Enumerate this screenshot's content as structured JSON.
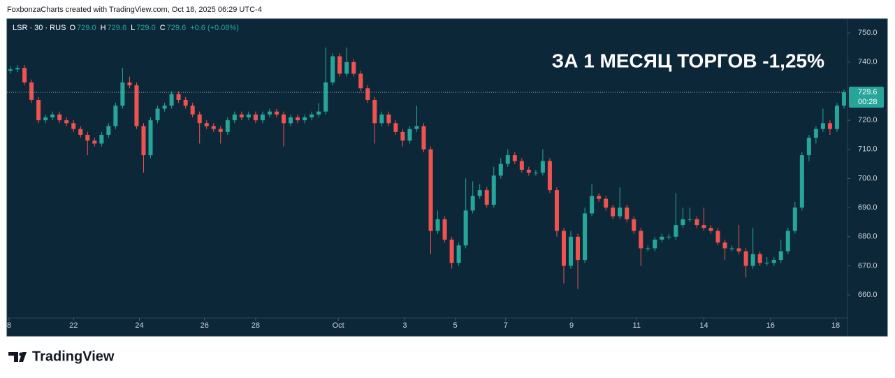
{
  "header": "FoxbonzaCharts created with TradingView.com, Oct 18, 2025 06:29 UTC-4",
  "chart_data": {
    "type": "candlestick",
    "symbol": "LSR · 30 · RUS",
    "ohlc": [
      {
        "key": "O",
        "value": "729.0"
      },
      {
        "key": "H",
        "value": "729.6"
      },
      {
        "key": "L",
        "value": "729.0"
      },
      {
        "key": "C",
        "value": "729.6"
      }
    ],
    "change": "+0.6 (+0.08%)",
    "annotation": "ЗА 1 МЕСЯЦ ТОРГОВ -1,25%",
    "up_color": "#26a69a",
    "down_color": "#ef5350",
    "last_price": 729.6,
    "countdown": "00:28",
    "xlim": [
      0,
      120
    ],
    "xticks": [
      {
        "value": 0.3,
        "label": "8"
      },
      {
        "value": 9.5,
        "label": "22"
      },
      {
        "value": 18.9,
        "label": "24"
      },
      {
        "value": 28.2,
        "label": "26"
      },
      {
        "value": 35.5,
        "label": "28"
      },
      {
        "value": 47.3,
        "label": "Oct"
      },
      {
        "value": 56.8,
        "label": "3"
      },
      {
        "value": 64,
        "label": "5"
      },
      {
        "value": 71.2,
        "label": "7"
      },
      {
        "value": 80.6,
        "label": "9"
      },
      {
        "value": 89.9,
        "label": "11"
      },
      {
        "value": 99.5,
        "label": "14"
      },
      {
        "value": 109,
        "label": "16"
      },
      {
        "value": 118.3,
        "label": "18"
      }
    ],
    "ylim": [
      652.1,
      754.6
    ],
    "yticks": [
      {
        "value": 660,
        "label": "660.0"
      },
      {
        "value": 670,
        "label": "670.0"
      },
      {
        "value": 680,
        "label": "680.0"
      },
      {
        "value": 690,
        "label": "690.0"
      },
      {
        "value": 700,
        "label": "700.0"
      },
      {
        "value": 710,
        "label": "710.0"
      },
      {
        "value": 720,
        "label": "720.0"
      },
      {
        "value": 730,
        "label": "730.0"
      },
      {
        "value": 740,
        "label": "740.0"
      },
      {
        "value": 750,
        "label": "750.0"
      }
    ],
    "candles": [
      [
        737,
        738.5,
        736,
        737.5
      ],
      [
        737.5,
        739,
        736.5,
        738
      ],
      [
        738,
        739,
        732,
        733
      ],
      [
        733,
        734,
        726,
        727
      ],
      [
        727,
        728,
        719,
        720
      ],
      [
        720,
        722,
        719,
        721
      ],
      [
        721,
        723,
        720,
        722
      ],
      [
        722,
        723,
        719,
        720
      ],
      [
        720,
        721,
        718,
        719
      ],
      [
        719,
        720,
        716,
        717
      ],
      [
        717,
        718,
        714,
        715
      ],
      [
        715,
        716,
        708,
        713
      ],
      [
        713,
        714,
        711,
        712
      ],
      [
        712,
        716,
        711,
        715
      ],
      [
        715,
        719,
        714,
        718
      ],
      [
        718,
        726,
        717,
        725
      ],
      [
        725,
        738,
        724,
        733
      ],
      [
        733,
        735,
        731,
        732
      ],
      [
        732,
        733,
        717,
        718
      ],
      [
        718,
        719,
        702,
        708
      ],
      [
        708,
        721,
        707,
        720
      ],
      [
        720,
        725,
        719,
        724
      ],
      [
        724,
        726,
        723,
        725
      ],
      [
        725,
        730,
        724,
        729
      ],
      [
        729,
        730,
        726,
        727
      ],
      [
        727,
        728,
        724,
        725
      ],
      [
        725,
        726,
        721,
        722
      ],
      [
        722,
        723,
        712,
        719
      ],
      [
        719,
        720,
        717,
        718
      ],
      [
        718,
        719,
        716,
        717
      ],
      [
        717,
        718,
        712,
        716
      ],
      [
        716,
        721,
        715,
        720
      ],
      [
        720,
        723,
        719,
        722
      ],
      [
        722,
        723,
        720,
        721
      ],
      [
        721,
        723,
        720,
        722
      ],
      [
        722,
        723,
        719,
        720
      ],
      [
        720,
        723,
        719,
        722
      ],
      [
        722,
        724,
        721,
        723
      ],
      [
        723,
        724,
        721,
        722
      ],
      [
        722,
        723,
        711,
        719
      ],
      [
        719,
        722,
        718,
        721
      ],
      [
        721,
        722,
        719,
        720
      ],
      [
        720,
        722,
        719,
        721
      ],
      [
        721,
        723,
        720,
        722
      ],
      [
        722,
        726,
        721,
        723
      ],
      [
        723,
        745,
        722,
        733
      ],
      [
        733,
        743,
        732,
        742
      ],
      [
        742,
        743,
        735,
        736
      ],
      [
        736,
        745,
        735,
        740
      ],
      [
        740,
        741,
        735,
        736
      ],
      [
        736,
        737,
        730,
        731
      ],
      [
        731,
        732,
        726,
        727
      ],
      [
        727,
        728,
        712,
        719
      ],
      [
        719,
        723,
        718,
        722
      ],
      [
        722,
        723,
        718,
        719
      ],
      [
        719,
        720,
        715,
        716
      ],
      [
        716,
        717,
        711,
        713
      ],
      [
        713,
        718,
        712,
        717
      ],
      [
        717,
        725,
        716,
        718
      ],
      [
        718,
        719,
        709,
        710
      ],
      [
        710,
        711,
        674,
        682
      ],
      [
        682,
        689,
        681,
        686
      ],
      [
        686,
        687,
        678,
        679
      ],
      [
        679,
        680,
        669,
        671
      ],
      [
        671,
        678,
        670,
        677
      ],
      [
        677,
        700,
        676,
        689
      ],
      [
        689,
        699,
        688,
        694
      ],
      [
        694,
        698,
        693,
        696
      ],
      [
        696,
        697,
        690,
        691
      ],
      [
        691,
        704,
        690,
        701
      ],
      [
        701,
        707,
        700,
        705
      ],
      [
        705,
        710,
        704,
        708
      ],
      [
        708,
        709,
        705,
        706
      ],
      [
        706,
        707,
        702,
        703
      ],
      [
        703,
        704,
        701,
        702
      ],
      [
        702,
        703,
        701,
        702
      ],
      [
        702,
        710,
        701,
        706
      ],
      [
        706,
        707,
        695,
        696
      ],
      [
        696,
        697,
        680,
        682
      ],
      [
        682,
        683,
        664,
        670
      ],
      [
        670,
        682,
        669,
        680
      ],
      [
        680,
        681,
        662,
        672
      ],
      [
        672,
        690,
        671,
        688
      ],
      [
        688,
        698,
        687,
        694
      ],
      [
        694,
        695,
        692,
        693
      ],
      [
        693,
        694,
        689,
        690
      ],
      [
        690,
        691,
        686,
        687
      ],
      [
        687,
        697,
        686,
        690
      ],
      [
        690,
        691,
        685,
        686
      ],
      [
        686,
        687,
        681,
        682
      ],
      [
        682,
        683,
        670,
        676
      ],
      [
        676,
        677,
        675,
        676
      ],
      [
        676,
        680,
        675,
        679
      ],
      [
        679,
        681,
        678,
        680
      ],
      [
        680,
        681,
        679,
        680
      ],
      [
        680,
        695,
        679,
        684
      ],
      [
        684,
        690,
        683,
        686
      ],
      [
        686,
        690,
        685,
        686
      ],
      [
        686,
        687,
        683,
        684
      ],
      [
        684,
        690,
        682,
        683
      ],
      [
        683,
        684,
        681,
        682
      ],
      [
        682,
        683,
        677,
        678
      ],
      [
        678,
        679,
        672,
        676
      ],
      [
        676,
        677,
        675,
        676
      ],
      [
        676,
        684,
        674,
        675
      ],
      [
        675,
        676,
        666,
        670
      ],
      [
        670,
        683,
        669,
        674
      ],
      [
        674,
        675,
        670,
        671
      ],
      [
        671,
        673,
        670,
        671
      ],
      [
        671,
        673,
        670,
        672
      ],
      [
        672,
        679,
        671,
        675
      ],
      [
        675,
        683,
        674,
        682
      ],
      [
        682,
        692,
        681,
        690
      ],
      [
        690,
        709,
        689,
        708
      ],
      [
        708,
        715,
        706,
        714
      ],
      [
        714,
        718,
        712,
        717
      ],
      [
        717,
        724,
        716,
        719
      ],
      [
        719,
        720,
        715,
        717
      ],
      [
        717,
        726,
        716,
        725
      ],
      [
        725,
        730.5,
        724,
        729.6
      ]
    ]
  },
  "footer": {
    "brand": "TradingView"
  }
}
